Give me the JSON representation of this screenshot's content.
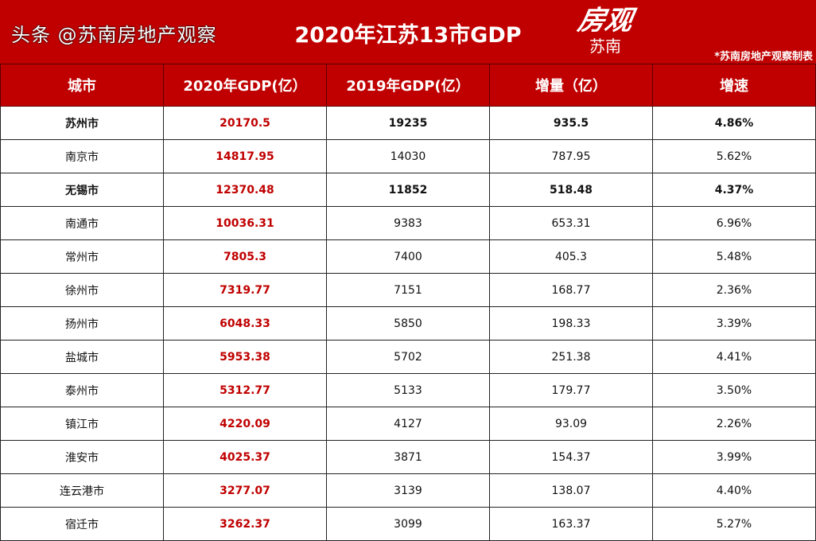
{
  "title": "2020年江苏13市GDP",
  "logo": {
    "big": "房观",
    "small": "苏南"
  },
  "credit": "*苏南房地产观察制表",
  "columns": [
    "城市",
    "2020年GDP(亿）",
    "2019年GDP(亿）",
    "增量（亿）",
    "增速"
  ],
  "rows": [
    {
      "city": "苏州市",
      "gdp2020": "20170.5",
      "gdp2019": "19235",
      "inc": "935.5",
      "rate": "4.86%",
      "bold": true
    },
    {
      "city": "南京市",
      "gdp2020": "14817.95",
      "gdp2019": "14030",
      "inc": "787.95",
      "rate": "5.62%"
    },
    {
      "city": "无锡市",
      "gdp2020": "12370.48",
      "gdp2019": "11852",
      "inc": "518.48",
      "rate": "4.37%",
      "bold": true
    },
    {
      "city": "南通市",
      "gdp2020": "10036.31",
      "gdp2019": "9383",
      "inc": "653.31",
      "rate": "6.96%"
    },
    {
      "city": "常州市",
      "gdp2020": "7805.3",
      "gdp2019": "7400",
      "inc": "405.3",
      "rate": "5.48%"
    },
    {
      "city": "徐州市",
      "gdp2020": "7319.77",
      "gdp2019": "7151",
      "inc": "168.77",
      "rate": "2.36%"
    },
    {
      "city": "扬州市",
      "gdp2020": "6048.33",
      "gdp2019": "5850",
      "inc": "198.33",
      "rate": "3.39%"
    },
    {
      "city": "盐城市",
      "gdp2020": "5953.38",
      "gdp2019": "5702",
      "inc": "251.38",
      "rate": "4.41%"
    },
    {
      "city": "泰州市",
      "gdp2020": "5312.77",
      "gdp2019": "5133",
      "inc": "179.77",
      "rate": "3.50%"
    },
    {
      "city": "镇江市",
      "gdp2020": "4220.09",
      "gdp2019": "4127",
      "inc": "93.09",
      "rate": "2.26%"
    },
    {
      "city": "淮安市",
      "gdp2020": "4025.37",
      "gdp2019": "3871",
      "inc": "154.37",
      "rate": "3.99%"
    },
    {
      "city": "连云港市",
      "gdp2020": "3277.07",
      "gdp2019": "3139",
      "inc": "138.07",
      "rate": "4.40%"
    },
    {
      "city": "宿迁市",
      "gdp2020": "3262.37",
      "gdp2019": "3099",
      "inc": "163.37",
      "rate": "5.27%"
    }
  ],
  "watermark": "头条 @苏南房地产观察",
  "colors": {
    "header": "#c00000",
    "gdp_text": "#c00000"
  }
}
